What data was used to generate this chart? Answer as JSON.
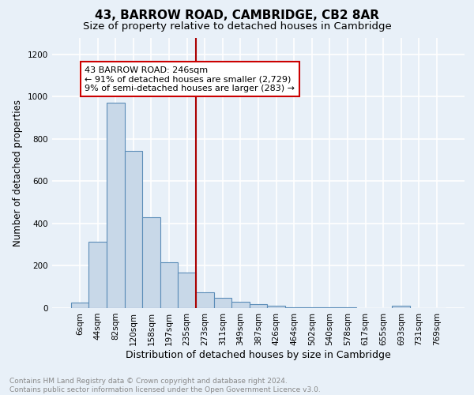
{
  "title1": "43, BARROW ROAD, CAMBRIDGE, CB2 8AR",
  "title2": "Size of property relative to detached houses in Cambridge",
  "xlabel": "Distribution of detached houses by size in Cambridge",
  "ylabel": "Number of detached properties",
  "bar_labels": [
    "6sqm",
    "44sqm",
    "82sqm",
    "120sqm",
    "158sqm",
    "197sqm",
    "235sqm",
    "273sqm",
    "311sqm",
    "349sqm",
    "387sqm",
    "426sqm",
    "464sqm",
    "502sqm",
    "540sqm",
    "578sqm",
    "617sqm",
    "655sqm",
    "693sqm",
    "731sqm",
    "769sqm"
  ],
  "bar_values": [
    25,
    315,
    970,
    745,
    430,
    215,
    170,
    75,
    48,
    30,
    18,
    12,
    5,
    5,
    3,
    2,
    1,
    0,
    13,
    1,
    1
  ],
  "bar_color": "#c8d8e8",
  "bar_edge_color": "#5b8db8",
  "reference_line_color": "#aa0000",
  "annotation_text": "43 BARROW ROAD: 246sqm\n← 91% of detached houses are smaller (2,729)\n9% of semi-detached houses are larger (283) →",
  "annotation_box_color": "#ffffff",
  "annotation_box_edge_color": "#cc0000",
  "ylim": [
    0,
    1280
  ],
  "yticks": [
    0,
    200,
    400,
    600,
    800,
    1000,
    1200
  ],
  "bg_color": "#e8f0f8",
  "grid_color": "#ffffff",
  "footer_text": "Contains HM Land Registry data © Crown copyright and database right 2024.\nContains public sector information licensed under the Open Government Licence v3.0.",
  "title1_fontsize": 11,
  "title2_fontsize": 9.5,
  "xlabel_fontsize": 9,
  "ylabel_fontsize": 8.5,
  "tick_fontsize": 7.5,
  "annotation_fontsize": 8,
  "footer_fontsize": 6.5
}
